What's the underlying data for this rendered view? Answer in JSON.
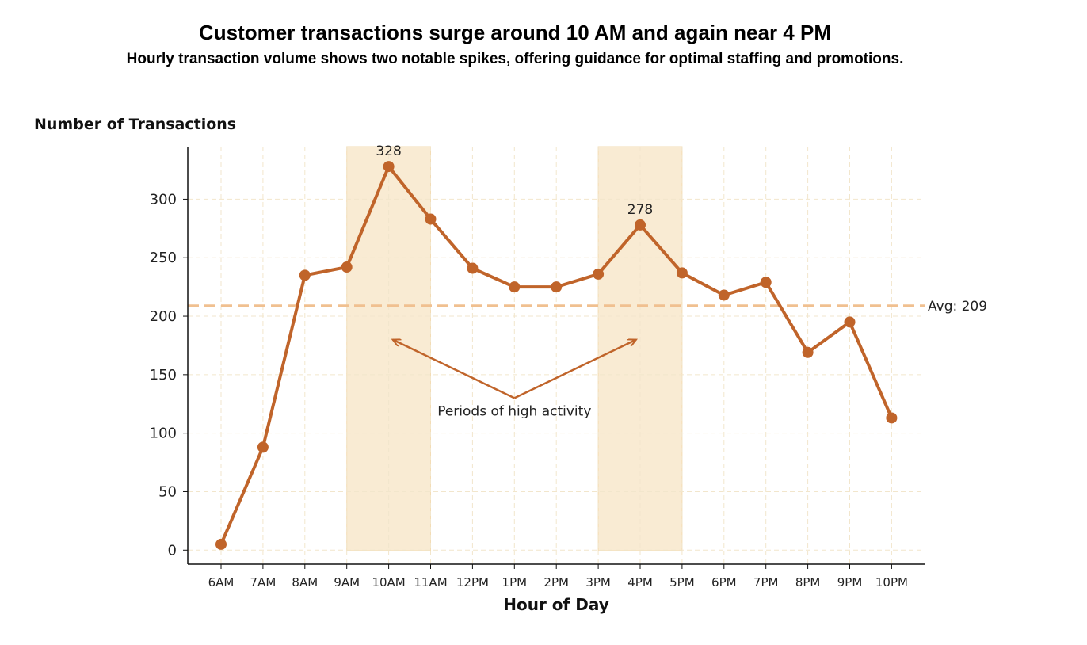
{
  "chart_data": {
    "type": "line",
    "title": "Customer transactions surge around 10 AM and again near 4 PM",
    "subtitle": "Hourly transaction volume shows two notable spikes, offering guidance for optimal staffing and promotions.",
    "ylabel": "Number of Transactions",
    "xlabel": "Hour of Day",
    "categories": [
      "6AM",
      "7AM",
      "8AM",
      "9AM",
      "10AM",
      "11AM",
      "12PM",
      "1PM",
      "2PM",
      "3PM",
      "4PM",
      "5PM",
      "6PM",
      "7PM",
      "8PM",
      "9PM",
      "10PM"
    ],
    "values": [
      5,
      88,
      235,
      242,
      328,
      283,
      241,
      225,
      225,
      236,
      278,
      237,
      218,
      229,
      169,
      195,
      113
    ],
    "yticks": [
      0,
      50,
      100,
      150,
      200,
      250,
      300
    ],
    "ylim": [
      -12,
      345
    ],
    "grid": true,
    "average": {
      "value": 209,
      "label": "Avg: 209"
    },
    "highlight_bands": [
      {
        "from": "9AM",
        "to": "11AM"
      },
      {
        "from": "3PM",
        "to": "5PM"
      }
    ],
    "peak_labels": [
      {
        "category": "10AM",
        "text": "328"
      },
      {
        "category": "4PM",
        "text": "278"
      }
    ],
    "annotation": {
      "text": "Periods of high activity",
      "arrows_to": [
        {
          "category": "10AM",
          "y": 180
        },
        {
          "category": "4PM",
          "y": 180
        }
      ],
      "anchor": {
        "category": "1PM",
        "y": 130
      }
    },
    "colors": {
      "line": "#c0642a",
      "avg_line": "#f0c090",
      "band": "#f9ebd3",
      "grid": "#f2e6cc",
      "arrow": "#c0642a"
    }
  }
}
